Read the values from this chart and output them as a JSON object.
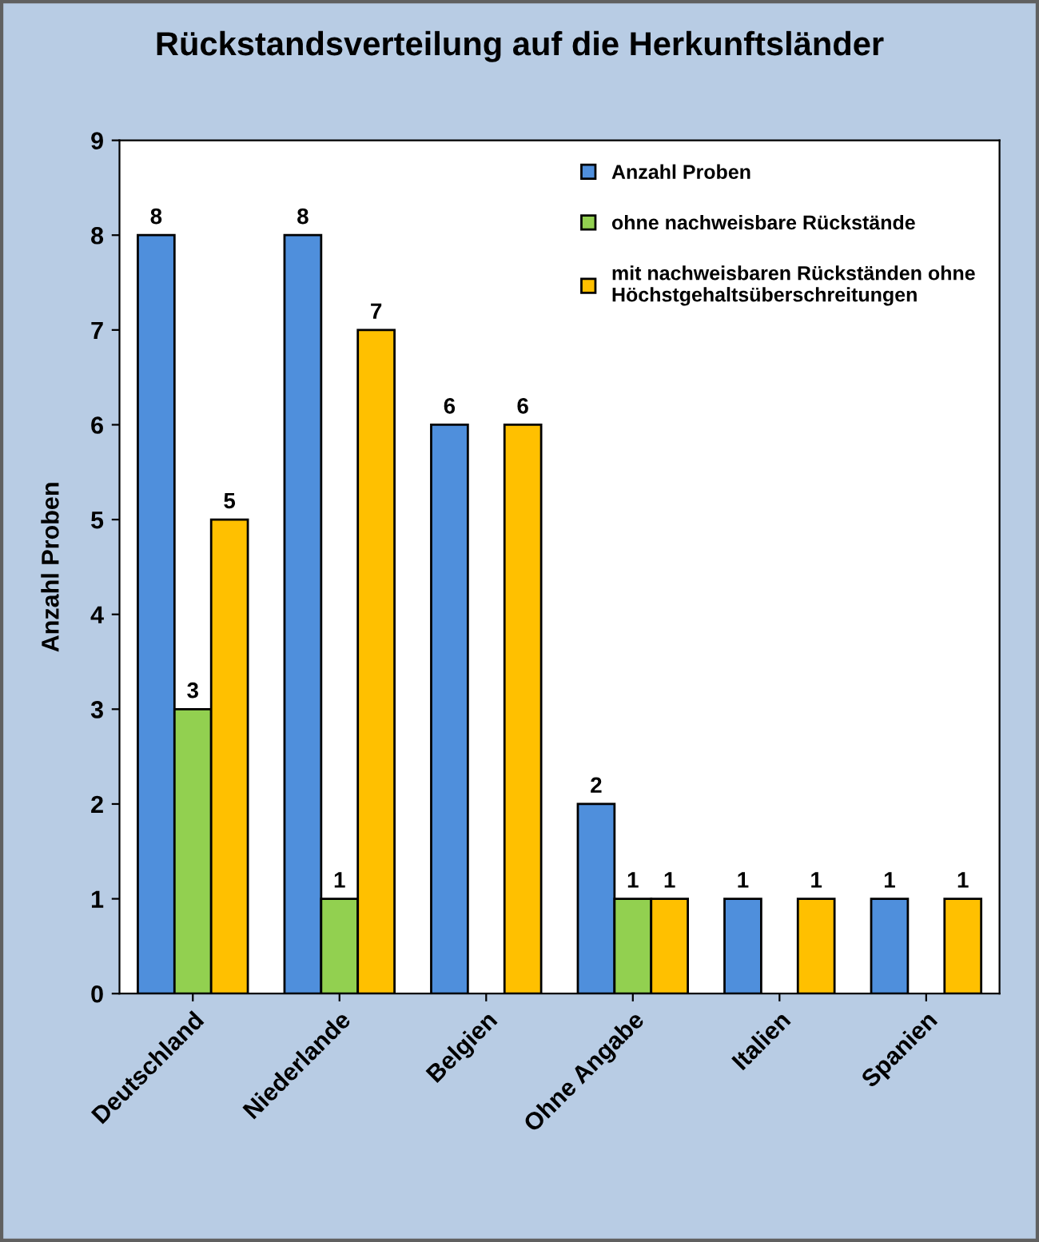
{
  "chart_data": {
    "type": "bar",
    "title": "Rückstandsverteilung auf die Herkunftsländer",
    "ylabel": "Anzahl Proben",
    "categories": [
      "Deutschland",
      "Niederlande",
      "Belgien",
      "Ohne Angabe",
      "Italien",
      "Spanien"
    ],
    "series": [
      {
        "name": "Anzahl Proben",
        "color": "#4f8fdc",
        "values": [
          8,
          8,
          6,
          2,
          1,
          1
        ]
      },
      {
        "name": "ohne nachweisbare Rückstände",
        "color": "#92d050",
        "values": [
          3,
          1,
          null,
          1,
          null,
          null
        ]
      },
      {
        "name": "mit nachweisbaren Rückständen ohne\nHöchstgehaltsüberschreitungen",
        "color": "#ffc000",
        "values": [
          5,
          7,
          6,
          1,
          1,
          1
        ]
      }
    ],
    "ylim": [
      0,
      9
    ],
    "yticks": [
      0,
      1,
      2,
      3,
      4,
      5,
      6,
      7,
      8,
      9
    ],
    "grid": false,
    "legend": "top right",
    "data_labels": true
  }
}
